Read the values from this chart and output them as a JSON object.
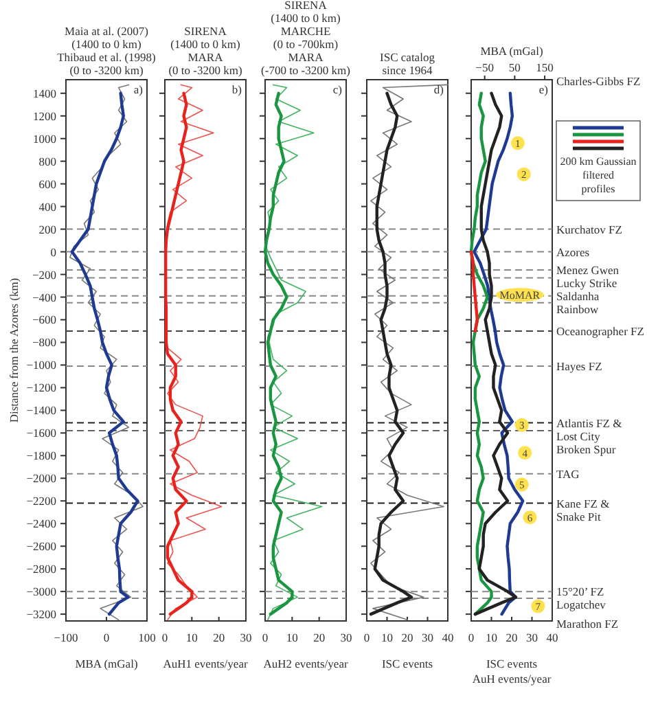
{
  "chart_data": [
    {
      "type": "line",
      "orientation": "horizontal",
      "title": "Maia at al. (2007)\n(1400 to 0 km)\nThibaud et al. (1998)\n(0 to -3200 km)",
      "xlabel": "MBA (mGal)",
      "ylabel": "Distance from the Azores (km)",
      "xlim": [
        -100,
        100
      ],
      "xticks": [
        -100,
        0,
        100
      ],
      "ylim": [
        -3260,
        1520
      ],
      "yticks": [
        1400,
        1200,
        1000,
        800,
        600,
        400,
        200,
        0,
        -200,
        -400,
        -600,
        -800,
        -1000,
        -1200,
        -1400,
        -1600,
        -1800,
        -2000,
        -2200,
        -2400,
        -2600,
        -2800,
        -3000,
        -3200
      ],
      "annotations": [
        "a)"
      ],
      "ref_lines": [
        {
          "axis": "y",
          "value": 200,
          "color": "#888888",
          "line_style": "dashed"
        },
        {
          "axis": "y",
          "value": 0,
          "color": "#888888",
          "line_style": "dashed"
        },
        {
          "axis": "y",
          "value": -160,
          "color": "#888888",
          "line_style": "dashed"
        },
        {
          "axis": "y",
          "value": -230,
          "color": "#888888",
          "line_style": "dashed"
        },
        {
          "axis": "y",
          "value": -390,
          "color": "#888888",
          "line_style": "dashed"
        },
        {
          "axis": "y",
          "value": -450,
          "color": "#888888",
          "line_style": "dashed"
        },
        {
          "axis": "y",
          "value": -700,
          "color": "#444444",
          "line_style": "dashed"
        },
        {
          "axis": "y",
          "value": -1010,
          "color": "#888888",
          "line_style": "dashed"
        },
        {
          "axis": "y",
          "value": -1510,
          "color": "#222222",
          "line_style": "dashed"
        },
        {
          "axis": "y",
          "value": -1580,
          "color": "#666666",
          "line_style": "dashed"
        },
        {
          "axis": "y",
          "value": -1960,
          "color": "#888888",
          "line_style": "dashed"
        },
        {
          "axis": "y",
          "value": -2220,
          "color": "#222222",
          "line_style": "dashed"
        },
        {
          "axis": "y",
          "value": -3000,
          "color": "#888888",
          "line_style": "dashed"
        },
        {
          "axis": "y",
          "value": -3060,
          "color": "#888888",
          "line_style": "dashed"
        }
      ],
      "series": [
        {
          "color": "#777777",
          "x": [
            1475,
            1450,
            1350,
            1250,
            1150,
            1050,
            950,
            850,
            750,
            650,
            550,
            450,
            350,
            250,
            150,
            50,
            -50,
            -150,
            -250,
            -350,
            -450,
            -550,
            -650,
            -750,
            -850,
            -950,
            -1050,
            -1150,
            -1250,
            -1350,
            -1450,
            -1550,
            -1650,
            -1750,
            -1850,
            -1950,
            -2050,
            -2150,
            -2250,
            -2350,
            -2450,
            -2550,
            -2650,
            -2750,
            -2850,
            -2950,
            -3050,
            -3150,
            -3250
          ],
          "values": [
            55,
            30,
            45,
            30,
            50,
            20,
            35,
            5,
            -10,
            -35,
            -20,
            -40,
            -30,
            -55,
            -45,
            -80,
            -90,
            -40,
            -60,
            -25,
            -45,
            -15,
            -30,
            -5,
            -15,
            25,
            0,
            10,
            -5,
            25,
            15,
            55,
            -10,
            30,
            15,
            40,
            20,
            65,
            90,
            20,
            50,
            15,
            40,
            20,
            45,
            25,
            60,
            -15,
            30
          ]
        },
        {
          "color": "#1f3a93",
          "x": [
            1400,
            1300,
            1200,
            1100,
            1000,
            900,
            800,
            700,
            600,
            500,
            400,
            300,
            200,
            100,
            0,
            -100,
            -200,
            -300,
            -400,
            -500,
            -600,
            -700,
            -800,
            -900,
            -1000,
            -1100,
            -1200,
            -1300,
            -1400,
            -1500,
            -1600,
            -1700,
            -1800,
            -1900,
            -2000,
            -2100,
            -2200,
            -2300,
            -2400,
            -2500,
            -2600,
            -2700,
            -2800,
            -2900,
            -3000,
            -3050,
            -3100,
            -3200
          ],
          "values": [
            35,
            38,
            42,
            35,
            25,
            12,
            -5,
            -15,
            -25,
            -30,
            -35,
            -40,
            -45,
            -65,
            -85,
            -65,
            -52,
            -40,
            -35,
            -30,
            -22,
            -15,
            -10,
            0,
            13,
            5,
            0,
            8,
            18,
            42,
            7,
            15,
            25,
            28,
            30,
            50,
            77,
            60,
            35,
            30,
            25,
            28,
            32,
            33,
            35,
            53,
            30,
            7
          ]
        }
      ]
    },
    {
      "type": "line",
      "orientation": "horizontal",
      "title": "SIRENA\n(1400 to 0 km)\nMARA\n(0 to -3200 km)",
      "xlabel": "AuH1 events/year",
      "xlim": [
        0,
        30
      ],
      "xticks": [
        0,
        10,
        20,
        30
      ],
      "ylim": [
        -3260,
        1520
      ],
      "yticks": [
        1400,
        1200,
        1000,
        800,
        600,
        400,
        200,
        0,
        -200,
        -400,
        -600,
        -800,
        -1000,
        -1200,
        -1400,
        -1600,
        -1800,
        -2000,
        -2200,
        -2400,
        -2600,
        -2800,
        -3000,
        -3200
      ],
      "tick_labels": "x",
      "annotations": [
        "b)"
      ],
      "ref_lines": [
        {
          "axis": "y",
          "value": 200,
          "color": "#888888",
          "line_style": "dashed"
        },
        {
          "axis": "y",
          "value": 0,
          "color": "#888888",
          "line_style": "dashed"
        },
        {
          "axis": "y",
          "value": -160,
          "color": "#888888",
          "line_style": "dashed"
        },
        {
          "axis": "y",
          "value": -230,
          "color": "#888888",
          "line_style": "dashed"
        },
        {
          "axis": "y",
          "value": -390,
          "color": "#888888",
          "line_style": "dashed"
        },
        {
          "axis": "y",
          "value": -450,
          "color": "#888888",
          "line_style": "dashed"
        },
        {
          "axis": "y",
          "value": -700,
          "color": "#444444",
          "line_style": "dashed"
        },
        {
          "axis": "y",
          "value": -1010,
          "color": "#888888",
          "line_style": "dashed"
        },
        {
          "axis": "y",
          "value": -1510,
          "color": "#222222",
          "line_style": "dashed"
        },
        {
          "axis": "y",
          "value": -1580,
          "color": "#666666",
          "line_style": "dashed"
        },
        {
          "axis": "y",
          "value": -1960,
          "color": "#888888",
          "line_style": "dashed"
        },
        {
          "axis": "y",
          "value": -2220,
          "color": "#222222",
          "line_style": "dashed"
        },
        {
          "axis": "y",
          "value": -3000,
          "color": "#888888",
          "line_style": "dashed"
        },
        {
          "axis": "y",
          "value": -3060,
          "color": "#888888",
          "line_style": "dashed"
        }
      ],
      "series": [
        {
          "color": "#f0504a",
          "x": [
            1475,
            1450,
            1350,
            1250,
            1150,
            1050,
            950,
            850,
            750,
            650,
            550,
            450,
            350,
            250,
            150,
            50,
            -50,
            -150,
            -250,
            -350,
            -450,
            -550,
            -650,
            -750,
            -850,
            -950,
            -1050,
            -1150,
            -1250,
            -1350,
            -1450,
            -1550,
            -1650,
            -1750,
            -1850,
            -1950,
            -2050,
            -2150,
            -2250,
            -2350,
            -2450,
            -2550,
            -2650,
            -2750,
            -2850,
            -2950,
            -3050,
            -3150,
            -3250
          ],
          "values": [
            6,
            10,
            5,
            14,
            6,
            18,
            5,
            14,
            4,
            10,
            3,
            8,
            2,
            1,
            0.5,
            0.2,
            0.2,
            0.3,
            0.2,
            0.3,
            0.5,
            0.3,
            0.5,
            0.3,
            1,
            6,
            2,
            5,
            1,
            4,
            14,
            13,
            11,
            2,
            9,
            12,
            2,
            10,
            21,
            8,
            15,
            2,
            3,
            1,
            5,
            8,
            12,
            4,
            1
          ]
        },
        {
          "color": "#e8221c",
          "x": [
            1400,
            1300,
            1200,
            1100,
            1000,
            900,
            800,
            700,
            600,
            500,
            400,
            300,
            200,
            100,
            0,
            -100,
            -200,
            -300,
            -400,
            -500,
            -600,
            -700,
            -800,
            -900,
            -1000,
            -1100,
            -1200,
            -1300,
            -1400,
            -1500,
            -1600,
            -1700,
            -1800,
            -1900,
            -2000,
            -2100,
            -2200,
            -2300,
            -2400,
            -2500,
            -2600,
            -2700,
            -2800,
            -2900,
            -3000,
            -3050,
            -3100,
            -3200
          ],
          "values": [
            7,
            8,
            7,
            8,
            7,
            6,
            7,
            6,
            5,
            4,
            3,
            2,
            1,
            0.5,
            0.3,
            0.3,
            0.3,
            0.3,
            0.3,
            0.5,
            0.5,
            0.5,
            0.5,
            1,
            4,
            4,
            2,
            2,
            3,
            6,
            4,
            5,
            3,
            5,
            3,
            4,
            8,
            4,
            5,
            3,
            1,
            1,
            3,
            5,
            10,
            10,
            8,
            2
          ]
        }
      ]
    },
    {
      "type": "line",
      "orientation": "horizontal",
      "title": "SIRENA\n(1400 to 0 km)\nMARCHE\n(0 to -700km)\nMARA\n(-700 to -3200 km)",
      "xlabel": "AuH2 events/year",
      "xlim": [
        0,
        30
      ],
      "xticks": [
        0,
        10,
        20,
        30
      ],
      "ylim": [
        -3260,
        1520
      ],
      "yticks": [
        1400,
        1200,
        1000,
        800,
        600,
        400,
        200,
        0,
        -200,
        -400,
        -600,
        -800,
        -1000,
        -1200,
        -1400,
        -1600,
        -1800,
        -2000,
        -2200,
        -2400,
        -2600,
        -2800,
        -3000,
        -3200
      ],
      "tick_labels": "x",
      "annotations": [
        "c)"
      ],
      "ref_lines": [
        {
          "axis": "y",
          "value": 200,
          "color": "#888888",
          "line_style": "dashed"
        },
        {
          "axis": "y",
          "value": 0,
          "color": "#888888",
          "line_style": "dashed"
        },
        {
          "axis": "y",
          "value": -160,
          "color": "#888888",
          "line_style": "dashed"
        },
        {
          "axis": "y",
          "value": -230,
          "color": "#888888",
          "line_style": "dashed"
        },
        {
          "axis": "y",
          "value": -390,
          "color": "#888888",
          "line_style": "dashed"
        },
        {
          "axis": "y",
          "value": -450,
          "color": "#888888",
          "line_style": "dashed"
        },
        {
          "axis": "y",
          "value": -700,
          "color": "#444444",
          "line_style": "dashed"
        },
        {
          "axis": "y",
          "value": -1010,
          "color": "#888888",
          "line_style": "dashed"
        },
        {
          "axis": "y",
          "value": -1510,
          "color": "#222222",
          "line_style": "dashed"
        },
        {
          "axis": "y",
          "value": -1580,
          "color": "#666666",
          "line_style": "dashed"
        },
        {
          "axis": "y",
          "value": -1960,
          "color": "#888888",
          "line_style": "dashed"
        },
        {
          "axis": "y",
          "value": -2220,
          "color": "#222222",
          "line_style": "dashed"
        },
        {
          "axis": "y",
          "value": -3000,
          "color": "#888888",
          "line_style": "dashed"
        },
        {
          "axis": "y",
          "value": -3060,
          "color": "#888888",
          "line_style": "dashed"
        }
      ],
      "series": [
        {
          "color": "#3fb45f",
          "x": [
            1475,
            1450,
            1350,
            1250,
            1150,
            1050,
            950,
            850,
            750,
            650,
            550,
            450,
            350,
            250,
            150,
            50,
            -50,
            -150,
            -250,
            -350,
            -450,
            -550,
            -650,
            -750,
            -850,
            -950,
            -1050,
            -1150,
            -1250,
            -1350,
            -1450,
            -1550,
            -1650,
            -1750,
            -1850,
            -1950,
            -2050,
            -2150,
            -2250,
            -2350,
            -2450,
            -2550,
            -2650,
            -2750,
            -2850,
            -2950,
            -3050,
            -3150,
            -3250
          ],
          "values": [
            3,
            8,
            4,
            13,
            5,
            18,
            4,
            12,
            5,
            8,
            2,
            5,
            1,
            2,
            0.5,
            0.2,
            2,
            4,
            6,
            15,
            12,
            4,
            3,
            1,
            2,
            3,
            8,
            3,
            6,
            2,
            10,
            3,
            12,
            2,
            9,
            4,
            11,
            3,
            21,
            8,
            14,
            3,
            5,
            2,
            6,
            4,
            12,
            3,
            1
          ]
        },
        {
          "color": "#1a9641",
          "x": [
            1400,
            1300,
            1200,
            1100,
            1000,
            900,
            800,
            700,
            600,
            500,
            400,
            300,
            200,
            100,
            0,
            -100,
            -200,
            -300,
            -400,
            -500,
            -600,
            -700,
            -800,
            -900,
            -1000,
            -1100,
            -1200,
            -1300,
            -1400,
            -1500,
            -1600,
            -1700,
            -1800,
            -1900,
            -2000,
            -2100,
            -2200,
            -2300,
            -2400,
            -2500,
            -2600,
            -2700,
            -2800,
            -2900,
            -3000,
            -3050,
            -3100,
            -3200
          ],
          "values": [
            5,
            4,
            6,
            5,
            5,
            6,
            7,
            5,
            4,
            3,
            3,
            2,
            1.5,
            0.5,
            0,
            1,
            3,
            6,
            8,
            6,
            3,
            2,
            1,
            1.5,
            2,
            4,
            2,
            2,
            3,
            4,
            3,
            4,
            3,
            5,
            6,
            4,
            3,
            6,
            5,
            4,
            3,
            3,
            4,
            5,
            10,
            10,
            8,
            2
          ]
        }
      ]
    },
    {
      "type": "line",
      "orientation": "horizontal",
      "title": "ISC catalog\nsince 1964",
      "xlabel": "ISC events",
      "xlim": [
        0,
        40
      ],
      "xticks": [
        0,
        10,
        20,
        30,
        40
      ],
      "ylim": [
        -3260,
        1520
      ],
      "yticks": [
        1400,
        1200,
        1000,
        800,
        600,
        400,
        200,
        0,
        -200,
        -400,
        -600,
        -800,
        -1000,
        -1200,
        -1400,
        -1600,
        -1800,
        -2000,
        -2200,
        -2400,
        -2600,
        -2800,
        -3000,
        -3200
      ],
      "tick_labels": "x",
      "annotations": [
        "d)"
      ],
      "ref_lines": [
        {
          "axis": "y",
          "value": 200,
          "color": "#888888",
          "line_style": "dashed"
        },
        {
          "axis": "y",
          "value": 0,
          "color": "#888888",
          "line_style": "dashed"
        },
        {
          "axis": "y",
          "value": -160,
          "color": "#888888",
          "line_style": "dashed"
        },
        {
          "axis": "y",
          "value": -230,
          "color": "#888888",
          "line_style": "dashed"
        },
        {
          "axis": "y",
          "value": -390,
          "color": "#888888",
          "line_style": "dashed"
        },
        {
          "axis": "y",
          "value": -450,
          "color": "#888888",
          "line_style": "dashed"
        },
        {
          "axis": "y",
          "value": -700,
          "color": "#444444",
          "line_style": "dashed"
        },
        {
          "axis": "y",
          "value": -1010,
          "color": "#888888",
          "line_style": "dashed"
        },
        {
          "axis": "y",
          "value": -1510,
          "color": "#222222",
          "line_style": "dashed"
        },
        {
          "axis": "y",
          "value": -1580,
          "color": "#666666",
          "line_style": "dashed"
        },
        {
          "axis": "y",
          "value": -1960,
          "color": "#888888",
          "line_style": "dashed"
        },
        {
          "axis": "y",
          "value": -2220,
          "color": "#222222",
          "line_style": "dashed"
        },
        {
          "axis": "y",
          "value": -3000,
          "color": "#888888",
          "line_style": "dashed"
        },
        {
          "axis": "y",
          "value": -3060,
          "color": "#888888",
          "line_style": "dashed"
        }
      ],
      "series": [
        {
          "color": "#777777",
          "x": [
            1475,
            1450,
            1350,
            1250,
            1150,
            1050,
            950,
            850,
            750,
            650,
            550,
            450,
            350,
            250,
            150,
            50,
            -50,
            -150,
            -250,
            -350,
            -450,
            -550,
            -650,
            -750,
            -850,
            -950,
            -1050,
            -1150,
            -1250,
            -1350,
            -1450,
            -1550,
            -1650,
            -1750,
            -1850,
            -1950,
            -2050,
            -2150,
            -2250,
            -2350,
            -2450,
            -2550,
            -2650,
            -2750,
            -2850,
            -2950,
            -3050,
            -3150,
            -3250
          ],
          "values": [
            40,
            8,
            18,
            10,
            22,
            8,
            15,
            5,
            12,
            3,
            10,
            2,
            9,
            3,
            10,
            4,
            12,
            6,
            14,
            5,
            13,
            4,
            10,
            5,
            13,
            8,
            15,
            7,
            12,
            22,
            9,
            20,
            10,
            13,
            7,
            16,
            10,
            20,
            38,
            5,
            12,
            3,
            9,
            2,
            7,
            12,
            28,
            3,
            20
          ]
        },
        {
          "color": "#222222",
          "x": [
            1400,
            1300,
            1200,
            1100,
            1000,
            900,
            800,
            700,
            600,
            500,
            400,
            300,
            200,
            100,
            0,
            -100,
            -200,
            -300,
            -400,
            -500,
            -600,
            -700,
            -800,
            -900,
            -1000,
            -1100,
            -1200,
            -1300,
            -1400,
            -1500,
            -1600,
            -1700,
            -1800,
            -1900,
            -2000,
            -2100,
            -2200,
            -2300,
            -2400,
            -2500,
            -2600,
            -2700,
            -2800,
            -2900,
            -3000,
            -3050,
            -3100,
            -3200
          ],
          "values": [
            10,
            12,
            15,
            14,
            12,
            10,
            9,
            8,
            7,
            6,
            5,
            5,
            5,
            6,
            8,
            9,
            9,
            10,
            10,
            9,
            7,
            8,
            9,
            10,
            12,
            11,
            11,
            13,
            15,
            14,
            18,
            14,
            11,
            13,
            15,
            14,
            18,
            12,
            7,
            6,
            6,
            5,
            4,
            8,
            18,
            22,
            15,
            2
          ]
        }
      ]
    },
    {
      "type": "line",
      "orientation": "horizontal",
      "xlabel": "ISC events\nAuH events/year",
      "x2label": "MBA (mGal)",
      "xlim": [
        0,
        40
      ],
      "xticks": [
        0,
        10,
        20,
        30,
        40
      ],
      "x2lim": [
        -95,
        175
      ],
      "x2ticks": [
        -50,
        50,
        150
      ],
      "ylim": [
        -3260,
        1520
      ],
      "yticks": [
        1400,
        1200,
        1000,
        800,
        600,
        400,
        200,
        0,
        -200,
        -400,
        -600,
        -800,
        -1000,
        -1200,
        -1400,
        -1600,
        -1800,
        -2000,
        -2200,
        -2400,
        -2600,
        -2800,
        -3000,
        -3200
      ],
      "tick_labels": "x",
      "legend": "right",
      "legend_title": "200 km Gaussian filtered profiles",
      "annotations": [
        "e)",
        {
          "text": "1",
          "x": 23,
          "y": 960
        },
        {
          "text": "2",
          "x": 26,
          "y": 685
        },
        {
          "text": "MoMAR",
          "x": 24,
          "y": -380
        },
        {
          "text": "3",
          "x": 25,
          "y": -1530
        },
        {
          "text": "4",
          "x": 26.5,
          "y": -1775
        },
        {
          "text": "5",
          "x": 25,
          "y": -2055
        },
        {
          "text": "6",
          "x": 29,
          "y": -2345
        },
        {
          "text": "7",
          "x": 33,
          "y": -3130
        },
        "Charles-Gibbs FZ",
        "Marathon FZ"
      ],
      "ref_lines": [
        {
          "axis": "y",
          "value": 200,
          "label": "Kurchatov FZ",
          "color": "#888888",
          "line_style": "dashed"
        },
        {
          "axis": "y",
          "value": 0,
          "label": "Azores",
          "color": "#888888",
          "line_style": "dashed"
        },
        {
          "axis": "y",
          "value": -160,
          "label": "Menez Gwen",
          "color": "#888888",
          "line_style": "dashed"
        },
        {
          "axis": "y",
          "value": -230,
          "label": "Lucky Strike",
          "color": "#888888",
          "line_style": "dashed"
        },
        {
          "axis": "y",
          "value": -390,
          "label": "Saldanha",
          "color": "#888888",
          "line_style": "dashed"
        },
        {
          "axis": "y",
          "value": -450,
          "label": "Rainbow",
          "color": "#888888",
          "line_style": "dashed"
        },
        {
          "axis": "y",
          "value": -700,
          "label": "Oceanographer FZ",
          "color": "#444444",
          "line_style": "dashed"
        },
        {
          "axis": "y",
          "value": -1010,
          "label": "Hayes FZ",
          "color": "#888888",
          "line_style": "dashed"
        },
        {
          "axis": "y",
          "value": -1510,
          "label": "Atlantis FZ &\nLost City",
          "color": "#222222",
          "line_style": "dashed"
        },
        {
          "axis": "y",
          "value": -1580,
          "label": "Broken Spur",
          "color": "#666666",
          "line_style": "dashed"
        },
        {
          "axis": "y",
          "value": -1960,
          "label": "TAG",
          "color": "#888888",
          "line_style": "dashed"
        },
        {
          "axis": "y",
          "value": -2220,
          "label": "Kane FZ &\nSnake Pit",
          "color": "#222222",
          "line_style": "dashed"
        },
        {
          "axis": "y",
          "value": -3000,
          "label": "15°20’ FZ",
          "color": "#888888",
          "line_style": "dashed"
        },
        {
          "axis": "y",
          "value": -3060,
          "label": "Logatchev",
          "color": "#888888",
          "line_style": "dashed"
        }
      ],
      "series": [
        {
          "color": "#1f3a93",
          "axis": "x2",
          "x": [
            1400,
            1300,
            1200,
            1100,
            1000,
            900,
            800,
            700,
            600,
            500,
            400,
            300,
            200,
            100,
            0,
            -100,
            -200,
            -300,
            -400,
            -500,
            -600,
            -700,
            -800,
            -900,
            -1000,
            -1100,
            -1200,
            -1300,
            -1400,
            -1500,
            -1600,
            -1700,
            -1800,
            -1900,
            -2000,
            -2100,
            -2200,
            -2300,
            -2400,
            -2500,
            -2600,
            -2700,
            -2800,
            -2900,
            -3000,
            -3050,
            -3100,
            -3200
          ],
          "values": [
            35,
            38,
            42,
            35,
            25,
            12,
            -5,
            -15,
            -25,
            -30,
            -35,
            -40,
            -45,
            -65,
            -85,
            -65,
            -52,
            -40,
            -35,
            -30,
            -22,
            -15,
            -10,
            0,
            13,
            5,
            0,
            8,
            18,
            42,
            7,
            15,
            25,
            28,
            30,
            50,
            77,
            60,
            35,
            30,
            25,
            28,
            32,
            33,
            35,
            53,
            30,
            7
          ]
        },
        {
          "color": "#1a9641",
          "x": [
            1400,
            1300,
            1200,
            1100,
            1000,
            900,
            800,
            700,
            600,
            500,
            400,
            300,
            200,
            100,
            0,
            -100,
            -200,
            -300,
            -400,
            -500,
            -600,
            -700,
            -800,
            -900,
            -1000,
            -1100,
            -1200,
            -1300,
            -1400,
            -1500,
            -1600,
            -1700,
            -1800,
            -1900,
            -2000,
            -2100,
            -2200,
            -2300,
            -2400,
            -2500,
            -2600,
            -2700,
            -2800,
            -2900,
            -3000,
            -3050,
            -3100,
            -3200
          ],
          "values": [
            5,
            4,
            6,
            5,
            5,
            6,
            7,
            5,
            4,
            3,
            3,
            2,
            1.5,
            0.5,
            0,
            1,
            3,
            6,
            8,
            6,
            3,
            2,
            1,
            1.5,
            2,
            4,
            2,
            2,
            3,
            4,
            3,
            4,
            3,
            5,
            6,
            4,
            3,
            6,
            5,
            4,
            3,
            3,
            4,
            5,
            10,
            10,
            8,
            2
          ]
        },
        {
          "color": "#e8221c",
          "x": [
            0,
            -100,
            -200,
            -300,
            -400,
            -500,
            -600,
            -700
          ],
          "values": [
            0,
            1,
            1,
            1.5,
            2,
            2.5,
            3,
            2
          ]
        },
        {
          "color": "#222222",
          "x": [
            1400,
            1300,
            1200,
            1100,
            1000,
            900,
            800,
            700,
            600,
            500,
            400,
            300,
            200,
            100,
            0,
            -100,
            -200,
            -300,
            -400,
            -500,
            -600,
            -700,
            -800,
            -900,
            -1000,
            -1100,
            -1200,
            -1300,
            -1400,
            -1500,
            -1600,
            -1700,
            -1800,
            -1900,
            -2000,
            -2100,
            -2200,
            -2300,
            -2400,
            -2500,
            -2600,
            -2700,
            -2800,
            -2900,
            -3000,
            -3050,
            -3100,
            -3200
          ],
          "values": [
            10,
            12,
            15,
            14,
            12,
            10,
            9,
            8,
            7,
            6,
            5,
            5,
            5,
            6,
            8,
            9,
            9,
            10,
            10,
            9,
            7,
            8,
            9,
            10,
            12,
            11,
            11,
            13,
            15,
            14,
            18,
            14,
            11,
            13,
            15,
            14,
            18,
            12,
            7,
            6,
            6,
            5,
            4,
            8,
            18,
            22,
            15,
            2
          ]
        }
      ]
    }
  ]
}
